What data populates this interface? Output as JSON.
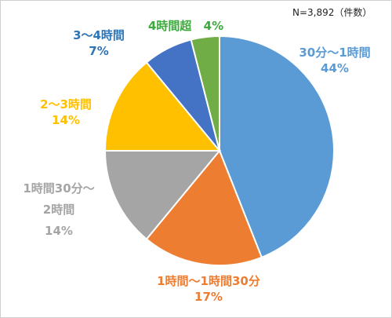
{
  "note": "N=3,892（件数）",
  "chart_data": {
    "type": "pie",
    "title": "",
    "categories": [
      "30分～1時間",
      "1時間～1時間30分",
      "1時間30分～2時間",
      "2～3時間",
      "3～4時間",
      "4時間超"
    ],
    "values": [
      44,
      17,
      14,
      14,
      7,
      4
    ],
    "value_labels": [
      "44%",
      "17%",
      "14%",
      "14%",
      "7%",
      "4%"
    ],
    "value_unit": "%",
    "start": "12 o'clock",
    "direction": "clockwise",
    "legend": "none (labels placed beside slices)",
    "colors": [
      "#5B9BD5",
      "#ED7D31",
      "#A5A5A5",
      "#FFC000",
      "#4472C4",
      "#70AD47"
    ],
    "label_colors": [
      "#5B9BD5",
      "#ED7D31",
      "#A5A5A5",
      "#FFC000",
      "#2E75B6",
      "#3CAA3C"
    ]
  }
}
